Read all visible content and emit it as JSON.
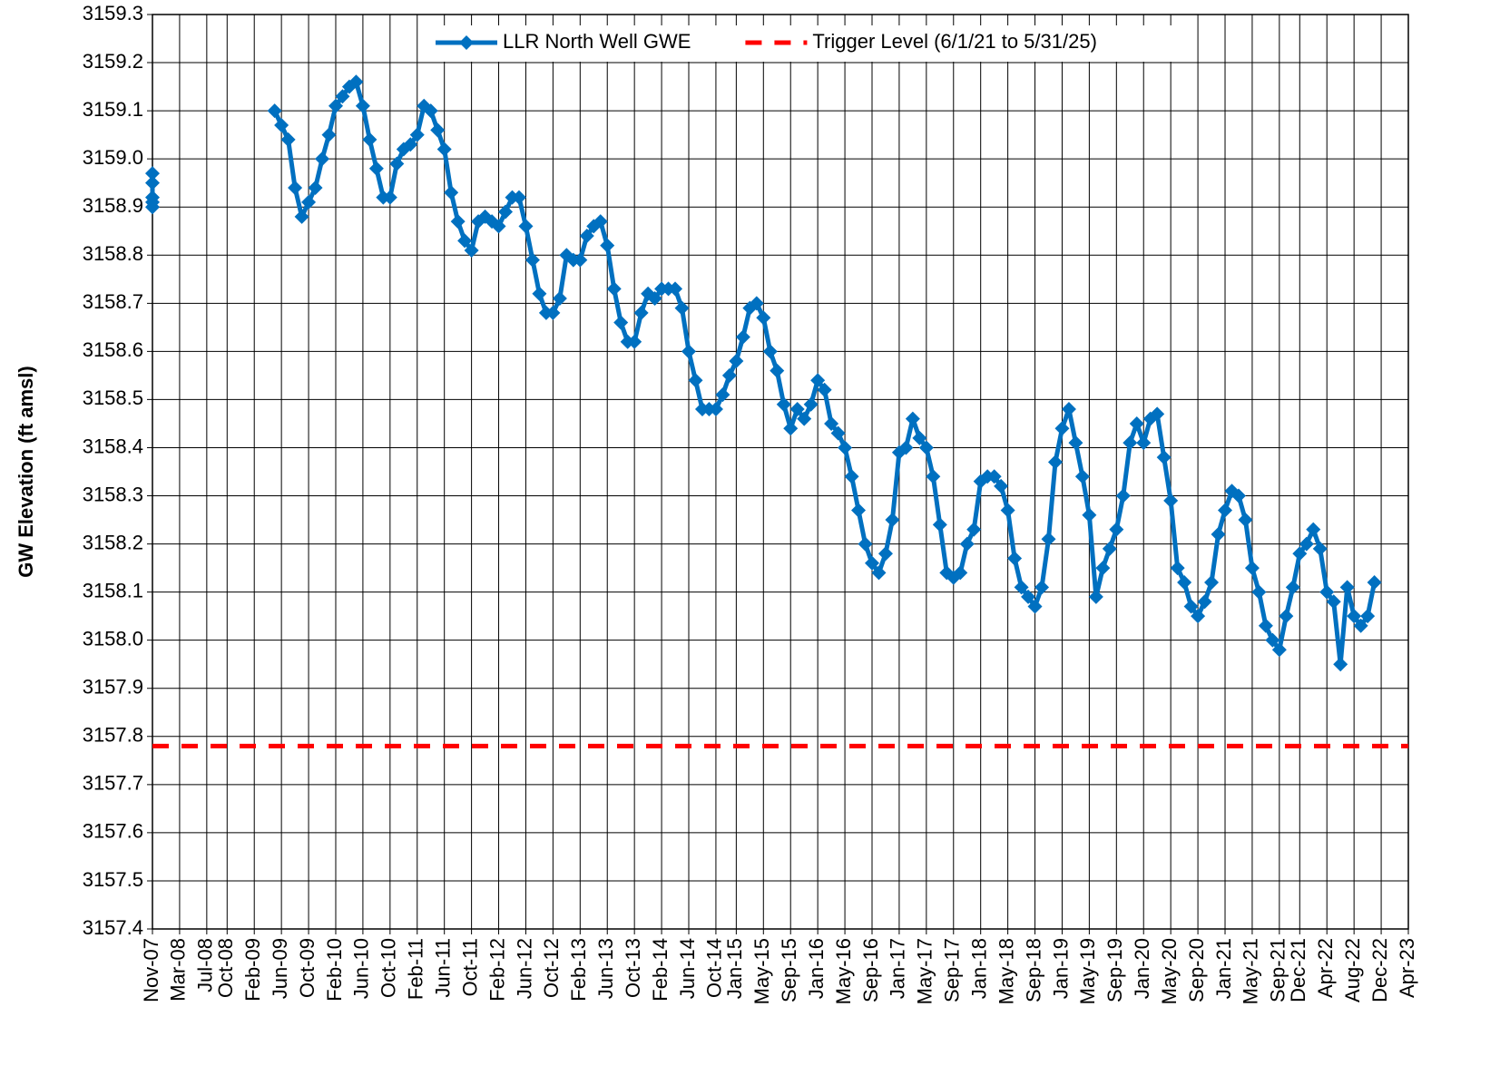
{
  "chart_data": {
    "type": "line",
    "y_label": "GW Elevation (ft amsl)",
    "grid": true,
    "legend": "top",
    "xlim": [
      "2007-11",
      "2023-04"
    ],
    "ylim": [
      3157.4,
      3159.3
    ],
    "yticks": [
      3157.4,
      3157.5,
      3157.6,
      3157.7,
      3157.8,
      3157.9,
      {
        "value": 3158,
        "label": "3158.0"
      },
      3158.1,
      3158.2,
      3158.3,
      3158.4,
      3158.5,
      3158.6,
      3158.7,
      3158.8,
      3158.9,
      {
        "value": 3159,
        "label": "3159.0"
      },
      3159.1,
      3159.2,
      3159.3
    ],
    "xticks": [
      {
        "value": "2007-11",
        "label": "Nov-07"
      },
      {
        "value": "2008-03",
        "label": "Mar-08"
      },
      {
        "value": "2008-07",
        "label": "Jul-08"
      },
      {
        "value": "2008-10",
        "label": "Oct-08"
      },
      {
        "value": "2009-02",
        "label": "Feb-09"
      },
      {
        "value": "2009-06",
        "label": "Jun-09"
      },
      {
        "value": "2009-10",
        "label": "Oct-09"
      },
      {
        "value": "2010-02",
        "label": "Feb-10"
      },
      {
        "value": "2010-06",
        "label": "Jun-10"
      },
      {
        "value": "2010-10",
        "label": "Oct-10"
      },
      {
        "value": "2011-02",
        "label": "Feb-11"
      },
      {
        "value": "2011-06",
        "label": "Jun-11"
      },
      {
        "value": "2011-10",
        "label": "Oct-11"
      },
      {
        "value": "2012-02",
        "label": "Feb-12"
      },
      {
        "value": "2012-06",
        "label": "Jun-12"
      },
      {
        "value": "2012-10",
        "label": "Oct-12"
      },
      {
        "value": "2013-02",
        "label": "Feb-13"
      },
      {
        "value": "2013-06",
        "label": "Jun-13"
      },
      {
        "value": "2013-10",
        "label": "Oct-13"
      },
      {
        "value": "2014-02",
        "label": "Feb-14"
      },
      {
        "value": "2014-06",
        "label": "Jun-14"
      },
      {
        "value": "2014-10",
        "label": "Oct-14"
      },
      {
        "value": "2015-01",
        "label": "Jan-15"
      },
      {
        "value": "2015-05",
        "label": "May-15"
      },
      {
        "value": "2015-09",
        "label": "Sep-15"
      },
      {
        "value": "2016-01",
        "label": "Jan-16"
      },
      {
        "value": "2016-05",
        "label": "May-16"
      },
      {
        "value": "2016-09",
        "label": "Sep-16"
      },
      {
        "value": "2017-01",
        "label": "Jan-17"
      },
      {
        "value": "2017-05",
        "label": "May-17"
      },
      {
        "value": "2017-09",
        "label": "Sep-17"
      },
      {
        "value": "2018-01",
        "label": "Jan-18"
      },
      {
        "value": "2018-05",
        "label": "May-18"
      },
      {
        "value": "2018-09",
        "label": "Sep-18"
      },
      {
        "value": "2019-01",
        "label": "Jan-19"
      },
      {
        "value": "2019-05",
        "label": "May-19"
      },
      {
        "value": "2019-09",
        "label": "Sep-19"
      },
      {
        "value": "2020-01",
        "label": "Jan-20"
      },
      {
        "value": "2020-05",
        "label": "May-20"
      },
      {
        "value": "2020-09",
        "label": "Sep-20"
      },
      {
        "value": "2021-01",
        "label": "Jan-21"
      },
      {
        "value": "2021-05",
        "label": "May-21"
      },
      {
        "value": "2021-09",
        "label": "Sep-21"
      },
      {
        "value": "2021-12",
        "label": "Dec-21"
      },
      {
        "value": "2022-04",
        "label": "Apr-22"
      },
      {
        "value": "2022-08",
        "label": "Aug-22"
      },
      {
        "value": "2022-12",
        "label": "Dec-22"
      },
      {
        "value": "2023-04",
        "label": "Apr-23"
      }
    ],
    "series": [
      {
        "name": "LLR North Well GWE",
        "color": "#0070C0",
        "marker": "diamond",
        "x": [
          "2007-11",
          "2007-11",
          "2007-11",
          "2007-11",
          "2007-11",
          null,
          "2009-05",
          "2009-06",
          "2009-07",
          "2009-08",
          "2009-09",
          "2009-10",
          "2009-11",
          "2009-12",
          "2010-01",
          "2010-02",
          "2010-03",
          "2010-04",
          "2010-05",
          "2010-06",
          "2010-07",
          "2010-08",
          "2010-09",
          "2010-10",
          "2010-11",
          "2010-12",
          "2011-01",
          "2011-02",
          "2011-03",
          "2011-04",
          "2011-05",
          "2011-06",
          "2011-07",
          "2011-08",
          "2011-09",
          "2011-10",
          "2011-11",
          "2011-12",
          "2012-01",
          "2012-02",
          "2012-03",
          "2012-04",
          "2012-05",
          "2012-06",
          "2012-07",
          "2012-08",
          "2012-09",
          "2012-10",
          "2012-11",
          "2012-12",
          "2013-01",
          "2013-02",
          "2013-03",
          "2013-04",
          "2013-05",
          "2013-06",
          "2013-07",
          "2013-08",
          "2013-09",
          "2013-10",
          "2013-11",
          "2013-12",
          "2014-01",
          "2014-02",
          "2014-03",
          "2014-04",
          "2014-05",
          "2014-06",
          "2014-07",
          "2014-08",
          "2014-09",
          "2014-10",
          "2014-11",
          "2014-12",
          "2015-01",
          "2015-02",
          "2015-03",
          "2015-04",
          "2015-05",
          "2015-06",
          "2015-07",
          "2015-08",
          "2015-09",
          "2015-10",
          "2015-11",
          "2015-12",
          "2016-01",
          "2016-02",
          "2016-03",
          "2016-04",
          "2016-05",
          "2016-06",
          "2016-07",
          "2016-08",
          "2016-09",
          "2016-10",
          "2016-11",
          "2016-12",
          "2017-01",
          "2017-02",
          "2017-03",
          "2017-04",
          "2017-05",
          "2017-06",
          "2017-07",
          "2017-08",
          "2017-09",
          "2017-10",
          "2017-11",
          "2017-12",
          "2018-01",
          "2018-02",
          "2018-03",
          "2018-04",
          "2018-05",
          "2018-06",
          "2018-07",
          "2018-08",
          "2018-09",
          "2018-10",
          "2018-11",
          "2018-12",
          "2019-01",
          "2019-02",
          "2019-03",
          "2019-04",
          "2019-05",
          "2019-06",
          "2019-07",
          "2019-08",
          "2019-09",
          "2019-10",
          "2019-11",
          "2019-12",
          "2020-01",
          "2020-02",
          "2020-03",
          "2020-04",
          "2020-05",
          "2020-06",
          "2020-07",
          "2020-08",
          "2020-09",
          "2020-10",
          "2020-11",
          "2020-12",
          "2021-01",
          "2021-02",
          "2021-03",
          "2021-04",
          "2021-05",
          "2021-06",
          "2021-07",
          "2021-08",
          "2021-09",
          "2021-10",
          "2021-11",
          "2021-12",
          "2022-01",
          "2022-02",
          "2022-03",
          "2022-04",
          "2022-05",
          "2022-06",
          "2022-07",
          "2022-08",
          "2022-09",
          "2022-10",
          "2022-11"
        ],
        "values": [
          3158.95,
          3158.97,
          3158.92,
          3158.91,
          3158.9,
          null,
          3159.1,
          3159.07,
          3159.04,
          3158.94,
          3158.88,
          3158.91,
          3158.94,
          3159.0,
          3159.05,
          3159.11,
          3159.13,
          3159.15,
          3159.16,
          3159.11,
          3159.04,
          3158.98,
          3158.92,
          3158.92,
          3158.99,
          3159.02,
          3159.03,
          3159.05,
          3159.11,
          3159.1,
          3159.06,
          3159.02,
          3158.93,
          3158.87,
          3158.83,
          3158.81,
          3158.87,
          3158.88,
          3158.87,
          3158.86,
          3158.89,
          3158.92,
          3158.92,
          3158.86,
          3158.79,
          3158.72,
          3158.68,
          3158.68,
          3158.71,
          3158.8,
          3158.79,
          3158.79,
          3158.84,
          3158.86,
          3158.87,
          3158.82,
          3158.73,
          3158.66,
          3158.62,
          3158.62,
          3158.68,
          3158.72,
          3158.71,
          3158.73,
          3158.73,
          3158.73,
          3158.69,
          3158.6,
          3158.54,
          3158.48,
          3158.48,
          3158.48,
          3158.51,
          3158.55,
          3158.58,
          3158.63,
          3158.69,
          3158.7,
          3158.67,
          3158.6,
          3158.56,
          3158.49,
          3158.44,
          3158.48,
          3158.46,
          3158.49,
          3158.54,
          3158.52,
          3158.45,
          3158.43,
          3158.4,
          3158.34,
          3158.27,
          3158.2,
          3158.16,
          3158.14,
          3158.18,
          3158.25,
          3158.39,
          3158.4,
          3158.46,
          3158.42,
          3158.4,
          3158.34,
          3158.24,
          3158.14,
          3158.13,
          3158.14,
          3158.2,
          3158.23,
          3158.33,
          3158.34,
          3158.34,
          3158.32,
          3158.27,
          3158.17,
          3158.11,
          3158.09,
          3158.07,
          3158.11,
          3158.21,
          3158.37,
          3158.44,
          3158.48,
          3158.41,
          3158.34,
          3158.26,
          3158.09,
          3158.15,
          3158.19,
          3158.23,
          3158.3,
          3158.41,
          3158.45,
          3158.41,
          3158.46,
          3158.47,
          3158.38,
          3158.29,
          3158.15,
          3158.12,
          3158.07,
          3158.05,
          3158.08,
          3158.12,
          3158.22,
          3158.27,
          3158.31,
          3158.3,
          3158.25,
          3158.15,
          3158.1,
          3158.03,
          3158.0,
          3157.98,
          3158.05,
          3158.11,
          3158.18,
          3158.2,
          3158.23,
          3158.19,
          3158.1,
          3158.08,
          3157.95,
          3158.11,
          3158.05,
          3158.03,
          3158.05,
          3158.12
        ]
      },
      {
        "name": "Trigger Level (6/1/21 to 5/31/25)",
        "color": "#FF0000",
        "dash": true,
        "x": [
          "2007-11",
          "2023-04"
        ],
        "values": [
          3157.78,
          3157.78
        ]
      }
    ]
  }
}
